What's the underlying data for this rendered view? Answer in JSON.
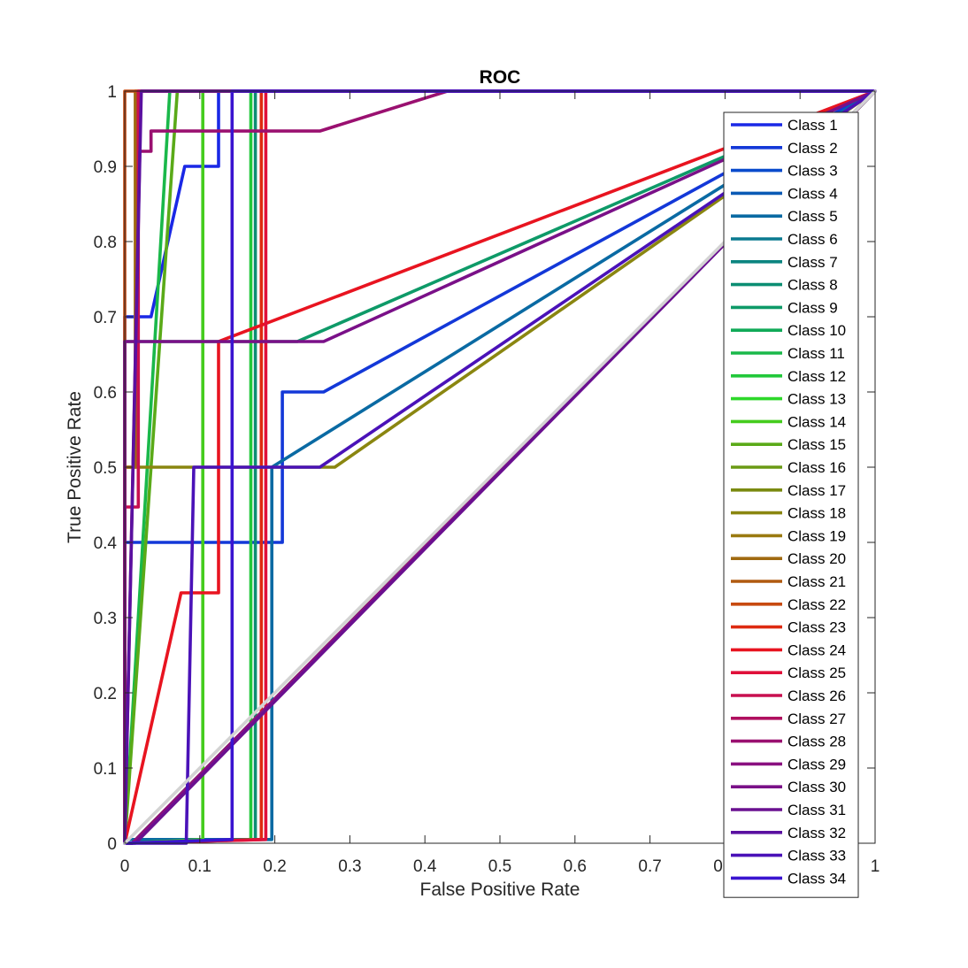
{
  "chart_data": {
    "type": "line",
    "title": "ROC",
    "xlabel": "False Positive Rate",
    "ylabel": "True Positive Rate",
    "xlim": [
      0,
      1
    ],
    "ylim": [
      0,
      1
    ],
    "xticks": [
      "0",
      "0.1",
      "0.2",
      "0.3",
      "0.4",
      "0.5",
      "0.6",
      "0.7",
      "0.8",
      "0.9",
      "1"
    ],
    "yticks": [
      "0",
      "0.1",
      "0.2",
      "0.3",
      "0.4",
      "0.5",
      "0.6",
      "0.7",
      "0.8",
      "0.9",
      "1"
    ],
    "grid": false,
    "legend_position": "right",
    "series": [
      {
        "name": "Class 1",
        "color": "#1a28e6",
        "x": [
          0,
          0,
          0.035,
          0.08,
          0.125,
          0.125,
          1
        ],
        "y": [
          0,
          0.7,
          0.7,
          0.9,
          0.9,
          1,
          1
        ]
      },
      {
        "name": "Class 2",
        "color": "#1338d8",
        "x": [
          0,
          0,
          0.21,
          0.21,
          0.265,
          1
        ],
        "y": [
          0,
          0.4,
          0.4,
          0.6,
          0.6,
          1
        ]
      },
      {
        "name": "Class 3",
        "color": "#0a4bcc",
        "x": [
          0,
          0.01,
          1
        ],
        "y": [
          0,
          0,
          1
        ]
      },
      {
        "name": "Class 4",
        "color": "#0a5ab5",
        "x": [
          0,
          0.01,
          1
        ],
        "y": [
          0,
          0,
          1
        ]
      },
      {
        "name": "Class 5",
        "color": "#0a6aa3",
        "x": [
          0,
          0,
          0.196,
          0.196,
          1
        ],
        "y": [
          0,
          0.005,
          0.005,
          0.5,
          1
        ]
      },
      {
        "name": "Class 6",
        "color": "#0a7a90",
        "x": [
          0,
          0.01,
          1
        ],
        "y": [
          0,
          0,
          1
        ]
      },
      {
        "name": "Class 7",
        "color": "#0b8580",
        "x": [
          0,
          0.01,
          1
        ],
        "y": [
          0,
          0,
          1
        ]
      },
      {
        "name": "Class 8",
        "color": "#0b8e72",
        "x": [
          0,
          0.174,
          0.174,
          1
        ],
        "y": [
          0,
          0.005,
          1,
          1
        ]
      },
      {
        "name": "Class 9",
        "color": "#0e9a68",
        "x": [
          0,
          0,
          0.23,
          1
        ],
        "y": [
          0,
          0.667,
          0.667,
          1
        ]
      },
      {
        "name": "Class 10",
        "color": "#10aa58",
        "x": [
          0,
          0.01,
          1
        ],
        "y": [
          0,
          0,
          1
        ]
      },
      {
        "name": "Class 11",
        "color": "#1ab84a",
        "x": [
          0,
          0.06,
          1
        ],
        "y": [
          0,
          1,
          1
        ]
      },
      {
        "name": "Class 12",
        "color": "#22c83a",
        "x": [
          0,
          0.168,
          0.168,
          1
        ],
        "y": [
          0,
          0.005,
          1,
          1
        ]
      },
      {
        "name": "Class 13",
        "color": "#2ed82a",
        "x": [
          0,
          0.01,
          1
        ],
        "y": [
          0,
          0,
          1
        ]
      },
      {
        "name": "Class 14",
        "color": "#45cc1e",
        "x": [
          0,
          0.104,
          0.104,
          1
        ],
        "y": [
          0,
          0.005,
          1,
          1
        ]
      },
      {
        "name": "Class 15",
        "color": "#5aaa18",
        "x": [
          0,
          0.07,
          1
        ],
        "y": [
          0,
          1,
          1
        ]
      },
      {
        "name": "Class 16",
        "color": "#6a9a14",
        "x": [
          0,
          0.01,
          1
        ],
        "y": [
          0,
          0,
          1
        ]
      },
      {
        "name": "Class 17",
        "color": "#7a8a10",
        "x": [
          0,
          0.01,
          1
        ],
        "y": [
          0,
          0,
          1
        ]
      },
      {
        "name": "Class 18",
        "color": "#8a8610",
        "x": [
          0,
          0,
          0.28,
          1
        ],
        "y": [
          0,
          0.5,
          0.5,
          1
        ]
      },
      {
        "name": "Class 19",
        "color": "#9a7a10",
        "x": [
          0,
          0.01,
          1
        ],
        "y": [
          0,
          0,
          1
        ]
      },
      {
        "name": "Class 20",
        "color": "#a06a10",
        "x": [
          0,
          0,
          0.014,
          0.014,
          1
        ],
        "y": [
          0,
          0.5,
          0.5,
          1,
          1
        ]
      },
      {
        "name": "Class 21",
        "color": "#b05a10",
        "x": [
          0,
          0.01,
          1
        ],
        "y": [
          0,
          0,
          1
        ]
      },
      {
        "name": "Class 22",
        "color": "#c84a10",
        "x": [
          0,
          0,
          1
        ],
        "y": [
          0,
          1,
          1
        ]
      },
      {
        "name": "Class 23",
        "color": "#de2a10",
        "x": [
          0,
          0.182,
          0.182,
          1
        ],
        "y": [
          0,
          0.005,
          1,
          1
        ]
      },
      {
        "name": "Class 24",
        "color": "#e81420",
        "x": [
          0,
          0.075,
          0.125,
          0.125,
          1
        ],
        "y": [
          0,
          0.333,
          0.333,
          0.667,
          1
        ]
      },
      {
        "name": "Class 25",
        "color": "#e0103a",
        "x": [
          0,
          0.188,
          0.188,
          1
        ],
        "y": [
          0,
          0.005,
          1,
          1
        ]
      },
      {
        "name": "Class 26",
        "color": "#c81050",
        "x": [
          0,
          0,
          0.018,
          0.018,
          1
        ],
        "y": [
          0,
          0.447,
          0.447,
          1,
          1
        ]
      },
      {
        "name": "Class 27",
        "color": "#b01060",
        "x": [
          0,
          0.01,
          1
        ],
        "y": [
          0,
          0,
          1
        ]
      },
      {
        "name": "Class 28",
        "color": "#9a1070",
        "x": [
          0,
          0.02,
          0.02,
          0.035,
          0.035,
          0.26,
          0.43,
          1
        ],
        "y": [
          0,
          0.92,
          0.92,
          0.92,
          0.947,
          0.947,
          1,
          1
        ]
      },
      {
        "name": "Class 29",
        "color": "#8a1080",
        "x": [
          0,
          0.01,
          1
        ],
        "y": [
          0,
          0,
          1
        ]
      },
      {
        "name": "Class 30",
        "color": "#7a1088",
        "x": [
          0,
          0,
          0.265,
          1
        ],
        "y": [
          0,
          0.667,
          0.667,
          1
        ]
      },
      {
        "name": "Class 31",
        "color": "#6a1090",
        "x": [
          0,
          0.014,
          1
        ],
        "y": [
          0,
          0,
          1
        ]
      },
      {
        "name": "Class 32",
        "color": "#5a10a0",
        "x": [
          0,
          0.022,
          1
        ],
        "y": [
          0,
          1,
          1
        ]
      },
      {
        "name": "Class 33",
        "color": "#4a12b8",
        "x": [
          0,
          0.082,
          0.092,
          0.26,
          1
        ],
        "y": [
          0,
          0,
          0.5,
          0.5,
          1
        ]
      },
      {
        "name": "Class 34",
        "color": "#3a14d0",
        "x": [
          0,
          0.143,
          0.143,
          1
        ],
        "y": [
          0,
          0.005,
          1,
          1
        ]
      },
      {
        "name": "",
        "color": "#d3d3d3",
        "x": [
          0,
          1
        ],
        "y": [
          0,
          1
        ]
      }
    ]
  }
}
